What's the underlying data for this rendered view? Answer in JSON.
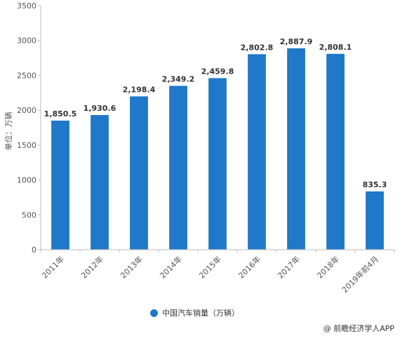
{
  "chart_data": {
    "type": "bar",
    "title": "",
    "xlabel": "",
    "ylabel": "单位：万辆",
    "categories": [
      "2011年",
      "2012年",
      "2013年",
      "2014年",
      "2015年",
      "2016年",
      "2017年",
      "2018年",
      "2019年前4月"
    ],
    "series": [
      {
        "name": "中国汽车销量（万辆）",
        "values": [
          1850.5,
          1930.6,
          2198.4,
          2349.2,
          2459.8,
          2802.8,
          2887.9,
          2808.1,
          835.3
        ],
        "labels": [
          "1,850.5",
          "1,930.6",
          "2,198.4",
          "2,349.2",
          "2,459.8",
          "2,802.8",
          "2,887.9",
          "2,808.1",
          "835.3"
        ]
      }
    ],
    "ylim": [
      0,
      3500
    ],
    "yticks": [
      0,
      500,
      1000,
      1500,
      2000,
      2500,
      3000,
      3500
    ],
    "grid": false,
    "legend": "bottom-center",
    "color": "#1f78c8"
  },
  "legend": {
    "label": "中国汽车销量（万辆）"
  },
  "source": "@ 前瞻经济学人APP"
}
